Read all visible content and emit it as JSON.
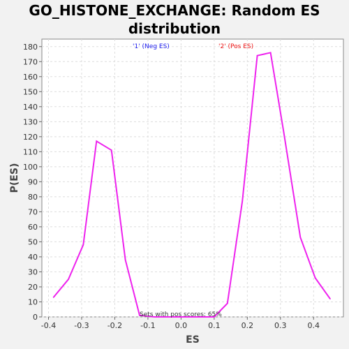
{
  "chart_data": {
    "type": "line",
    "title_line1": "GO_HISTONE_EXCHANGE: Random ES",
    "title_line2": "distribution",
    "xlabel": "ES",
    "ylabel": "P(ES)",
    "xlim": [
      -0.42,
      0.49
    ],
    "ylim": [
      0,
      185
    ],
    "x_ticks": [
      -0.4,
      -0.3,
      -0.2,
      -0.1,
      0.0,
      0.1,
      0.2,
      0.3,
      0.4
    ],
    "x_tick_labels": [
      "-0.4",
      "-0.3",
      "-0.2",
      "-0.1",
      "0.0",
      "0.1",
      "0.2",
      "0.3",
      "0.4"
    ],
    "y_ticks": [
      0,
      10,
      20,
      30,
      40,
      50,
      60,
      70,
      80,
      90,
      100,
      110,
      120,
      130,
      140,
      150,
      160,
      170,
      180
    ],
    "grid": true,
    "series": [
      {
        "color": "#ee22ee",
        "x": [
          -0.385,
          -0.34,
          -0.295,
          -0.255,
          -0.21,
          -0.168,
          -0.125,
          -0.08,
          0.0,
          0.05,
          0.1,
          0.14,
          0.185,
          0.23,
          0.27,
          0.31,
          0.36,
          0.405,
          0.45
        ],
        "y": [
          13,
          25,
          48,
          117,
          111,
          38,
          1,
          0,
          0,
          0,
          0,
          9,
          77,
          174,
          176,
          123,
          53,
          26,
          12
        ]
      }
    ],
    "annotations": [
      {
        "text": "'1' (Neg ES)",
        "color": "#1a1aee"
      },
      {
        "text": "'2' (Pos ES)",
        "color": "#ee1111"
      },
      {
        "text": "Sets with pos scores: 65%",
        "color": "#333333"
      }
    ]
  }
}
